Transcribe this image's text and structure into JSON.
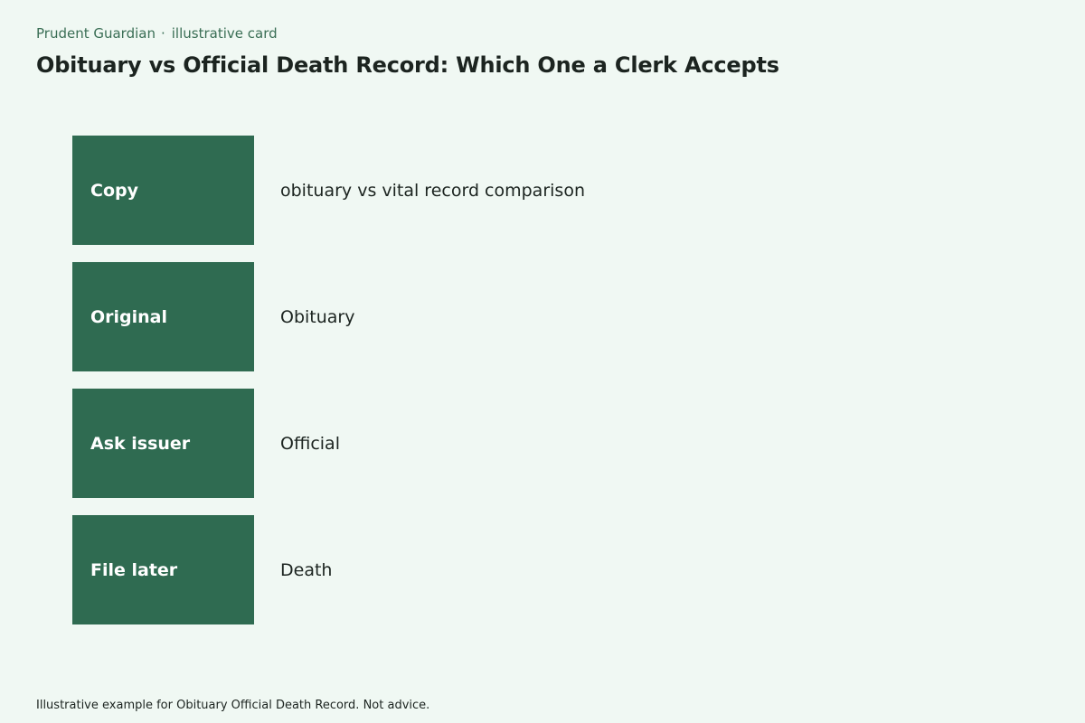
{
  "header": {
    "brand": "Prudent Guardian",
    "separator": "·",
    "tag": "illustrative card",
    "title": "Obituary vs Official Death Record: Which One a Clerk Accepts"
  },
  "rows": [
    {
      "label": "Copy",
      "value": "obituary vs vital record comparison"
    },
    {
      "label": "Original",
      "value": "Obituary"
    },
    {
      "label": "Ask issuer",
      "value": "Official"
    },
    {
      "label": "File later",
      "value": "Death"
    }
  ],
  "footer": {
    "note": "Illustrative example for Obituary Official Death Record. Not advice."
  },
  "colors": {
    "background": "#f0f8f3",
    "label_block": "#2f6b51",
    "brand_text": "#3a6e55"
  }
}
